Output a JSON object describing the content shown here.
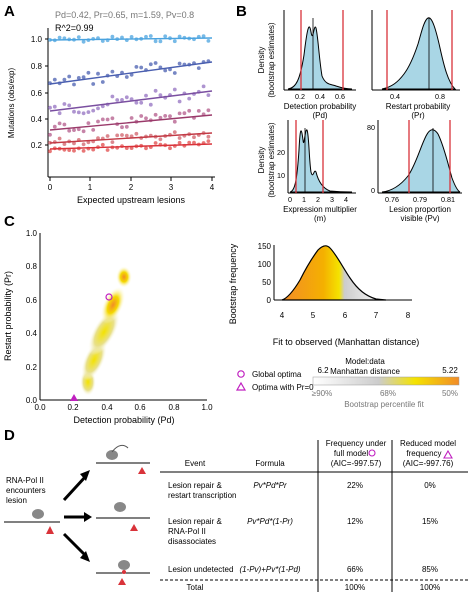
{
  "panels": {
    "A": "A",
    "B": "B",
    "C": "C",
    "D": "D"
  },
  "panelA": {
    "params": "Pd=0.42, Pr=0.65, m=1.59, Pv=0.8",
    "r2": "R^2=0.99",
    "ylabel": "Mutations (obs/exp)",
    "xlabel": "Expected upstream lesions",
    "yticks": [
      "0.2",
      "0.4",
      "0.6",
      "0.8",
      "1.0"
    ],
    "xticks": [
      "0",
      "1",
      "2",
      "3",
      "4"
    ]
  },
  "panelB": {
    "ylabel1": "Density",
    "ylabel2": "(bootstrap estimates)",
    "plots": [
      {
        "xlabel1": "Detection probability",
        "xlabel2": "(Pd)",
        "xticks": [
          "0.2",
          "0.4",
          "0.6"
        ],
        "yticks": []
      },
      {
        "xlabel1": "Restart probability",
        "xlabel2": "(Pr)",
        "xticks": [
          "0.4",
          "0.8"
        ],
        "yticks": []
      },
      {
        "xlabel1": "Expression multiplier",
        "xlabel2": "(m)",
        "xticks": [
          "0",
          "1",
          "2",
          "3",
          "4"
        ],
        "yticks": [
          "10",
          "20"
        ]
      },
      {
        "xlabel1": "Lesion proportion",
        "xlabel2": "visible (Pv)",
        "xticks": [
          "0.76",
          "0.79",
          "0.81"
        ],
        "yticks": [
          "0",
          "80"
        ]
      }
    ]
  },
  "panelC": {
    "ylabel": "Restart probability (Pr)",
    "xlabel": "Detection probability (Pd)",
    "ticks": [
      "0.0",
      "0.2",
      "0.4",
      "0.6",
      "0.8",
      "1.0"
    ],
    "hist": {
      "ylabel": "Bootstrap frequency",
      "xlabel": "Fit to observed (Manhattan distance)",
      "xticks": [
        "4",
        "5",
        "6",
        "7",
        "8"
      ],
      "yticks": [
        "0",
        "50",
        "100",
        "150"
      ]
    },
    "legend": {
      "global": "Global optima",
      "reduced": "Optima with Pr=0",
      "model_title1": "Model:data",
      "model_title2": "Manhattan distance",
      "val_low": "6.2",
      "val_high": "5.22",
      "pct": [
        "≥90%",
        "68%",
        "50%"
      ],
      "pct_label": "Bootstrap percentile fit"
    }
  },
  "panelD": {
    "encounter": [
      "RNA-Pol II",
      "encounters",
      "lesion"
    ],
    "headers": {
      "event": "Event",
      "formula": "Formula",
      "full": [
        "Frequency under",
        "full model",
        "(AIC=-997.57)"
      ],
      "reduced": [
        "Reduced model",
        "frequency",
        "(AIC=-997.76)"
      ]
    },
    "rows": [
      {
        "event": [
          "Lesion repair &",
          "restart transcription"
        ],
        "formula": "Pv*Pd*Pr",
        "full": "22%",
        "reduced": "0%"
      },
      {
        "event": [
          "Lesion repair &",
          "RNA-Pol II",
          "disassociates"
        ],
        "formula": "Pv*Pd*(1-Pr)",
        "full": "12%",
        "reduced": "15%"
      },
      {
        "event": [
          "Lesion undetected"
        ],
        "formula": "(1-Pv)+Pv*(1-Pd)",
        "full": "66%",
        "reduced": "85%"
      }
    ],
    "total": {
      "label": "Total",
      "full": "100%",
      "reduced": "100%"
    }
  },
  "colors": {
    "blue": "#4aa3df",
    "purple": "#7a4fa0",
    "red": "#d9333a",
    "orange": "#f28c28",
    "yellow": "#f4e300",
    "lightblue": "#a9d6e5",
    "magenta": "#c020c0"
  }
}
